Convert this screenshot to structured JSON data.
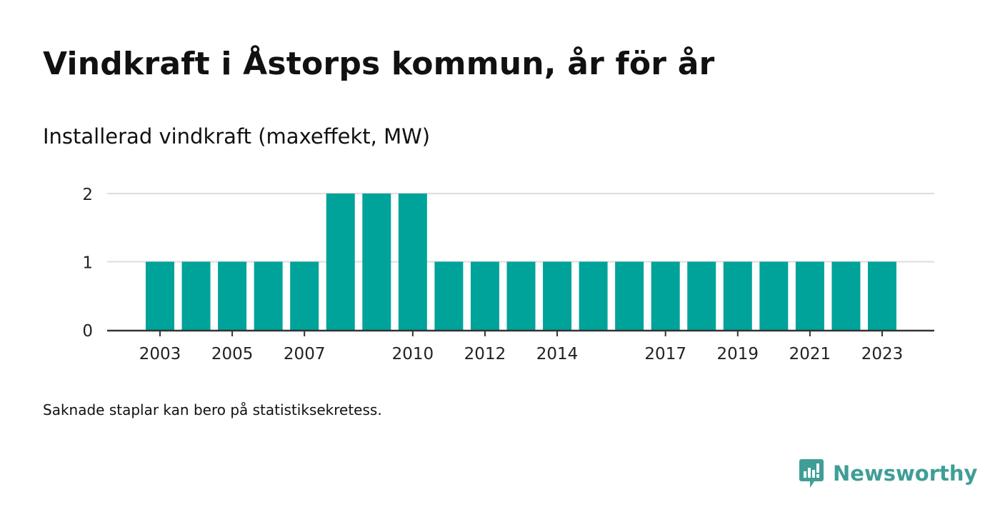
{
  "header": {
    "title": "Vindkraft i Åstorps kommun, år för år",
    "subtitle": "Installerad vindkraft (maxeffekt, MW)"
  },
  "footnote": "Saknade staplar kan bero på statistiksekretess.",
  "brand": {
    "name": "Newsworthy",
    "icon": "newsworthy-logo-icon",
    "color": "#3f9e96"
  },
  "chart_data": {
    "type": "bar",
    "title": "",
    "xlabel": "",
    "ylabel": "",
    "categories": [
      "2003",
      "2004",
      "2005",
      "2006",
      "2007",
      "2008",
      "2009",
      "2010",
      "2011",
      "2012",
      "2013",
      "2014",
      "2015",
      "2016",
      "2017",
      "2018",
      "2019",
      "2020",
      "2021",
      "2022",
      "2023"
    ],
    "values": [
      1,
      1,
      1,
      1,
      1,
      2,
      2,
      2,
      1,
      1,
      1,
      1,
      1,
      1,
      1,
      1,
      1,
      1,
      1,
      1,
      1
    ],
    "x_tick_labels": [
      "2003",
      "2005",
      "2007",
      "2010",
      "2012",
      "2014",
      "2017",
      "2019",
      "2021",
      "2023"
    ],
    "y_ticks": [
      "0",
      "1",
      "2"
    ],
    "ylim": [
      0,
      2
    ],
    "grid": true,
    "legend": "none",
    "bar_color": "#00a39a",
    "grid_color": "#dddddd",
    "axis_color": "#333333"
  }
}
